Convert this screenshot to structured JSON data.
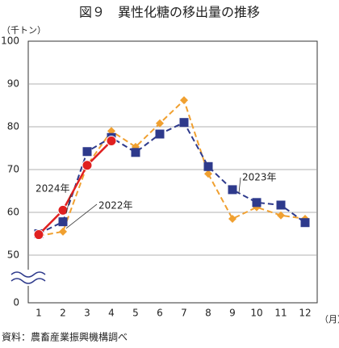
{
  "chart_data": {
    "type": "line",
    "title": "図９　異性化糖の移出量の推移",
    "y_label": "（千トン）",
    "x_label": "（月）",
    "source": "資料：農畜産業振興機構調べ",
    "categories": [
      "1",
      "2",
      "3",
      "4",
      "5",
      "6",
      "7",
      "8",
      "9",
      "10",
      "11",
      "12"
    ],
    "series": [
      {
        "name": "2022年",
        "color": "#f0a030",
        "style": "dashed",
        "marker": "diamond",
        "values": [
          54.5,
          55.5,
          71,
          79,
          75.3,
          80.8,
          86.2,
          69,
          58.5,
          61.2,
          59.3,
          58.5
        ]
      },
      {
        "name": "2023年",
        "color": "#2e3a8c",
        "style": "dashed",
        "marker": "square",
        "values": [
          55,
          57.8,
          74.2,
          77.5,
          74,
          78.3,
          81,
          70.7,
          65.3,
          62.3,
          61.7,
          57.6
        ]
      },
      {
        "name": "2024年",
        "color": "#e02020",
        "style": "solid",
        "marker": "circle",
        "values": [
          54.8,
          60.5,
          71,
          76.7,
          null,
          null,
          null,
          null,
          null,
          null,
          null,
          null
        ]
      }
    ],
    "ylim": [
      0,
      100
    ],
    "yticks": [
      0,
      50,
      60,
      70,
      80,
      90,
      100
    ],
    "grid": true
  }
}
